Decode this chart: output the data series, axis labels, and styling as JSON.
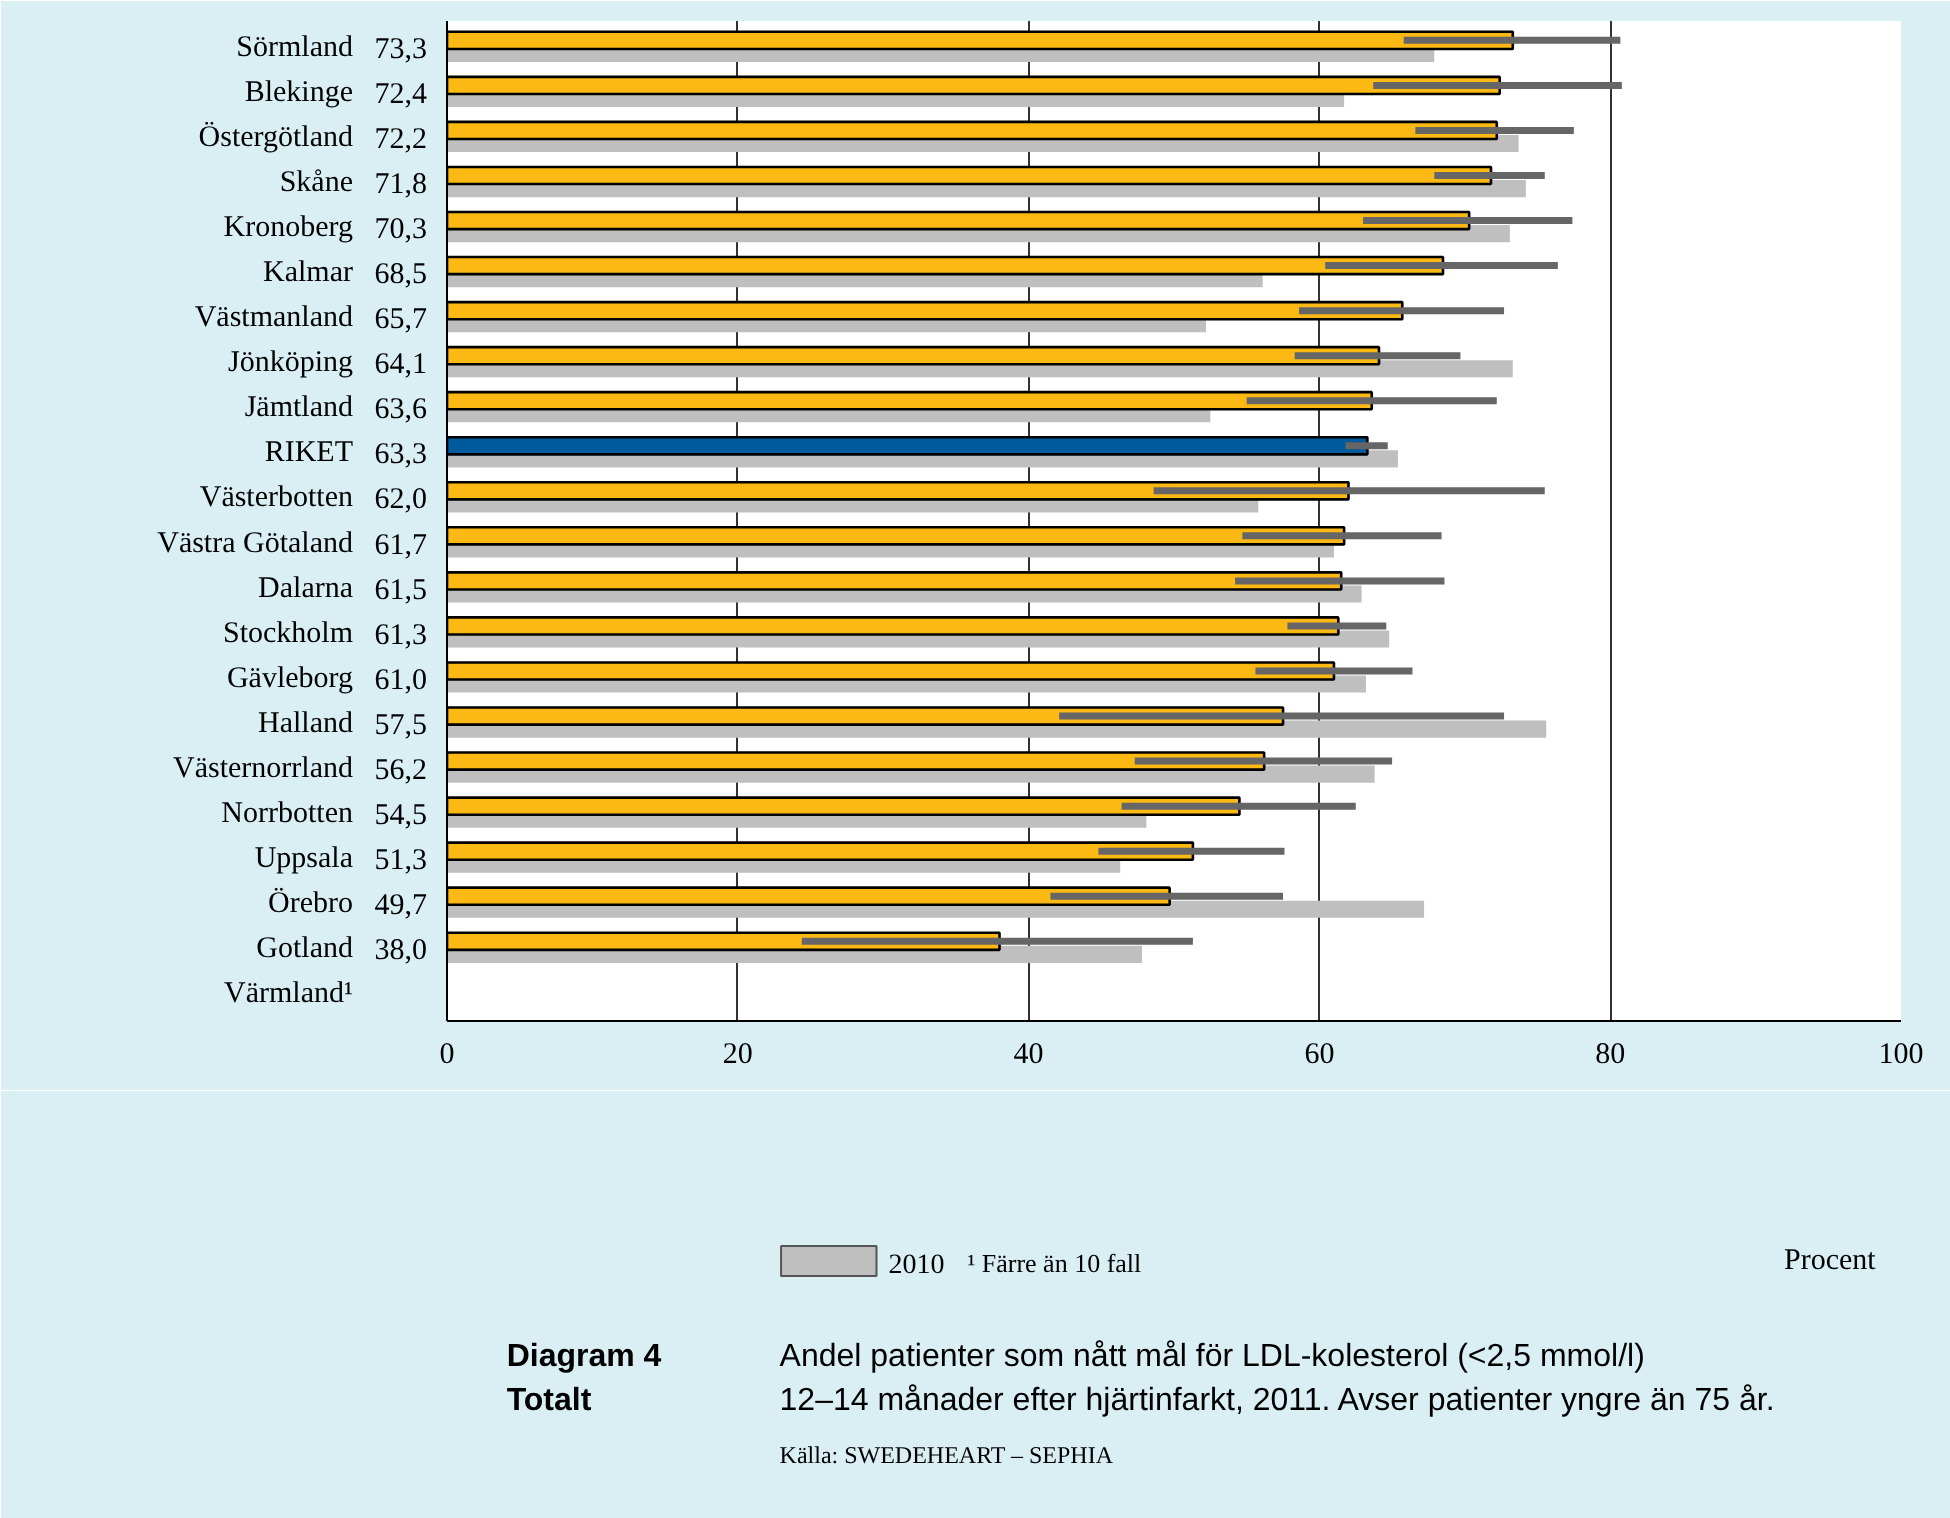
{
  "chart_data": {
    "type": "bar",
    "orientation": "horizontal",
    "title": "Andel patienter som nått mål för LDL-kolesterol (<2,5 mmol/l)\n12–14 månader efter hjärtinfarkt, 2011. Avser patienter yngre än 75 år.",
    "subtitle": "Diagram 4\nTotalt",
    "categories": [
      "Sörmland",
      "Blekinge",
      "Östergötland",
      "Skåne",
      "Kronoberg",
      "Kalmar",
      "Västmanland",
      "Jönköping",
      "Jämtland",
      "RIKET",
      "Västerbotten",
      "Västra Götaland",
      "Dalarna",
      "Stockholm",
      "Gävleborg",
      "Halland",
      "Västernorrland",
      "Norrbotten",
      "Uppsala",
      "Örebro",
      "Gotland",
      "Värmland¹"
    ],
    "series": [
      {
        "color": "#fdb913",
        "colors": [
          null,
          null,
          null,
          null,
          null,
          null,
          null,
          null,
          null,
          "#005a9c",
          null,
          null,
          null,
          null,
          null,
          null,
          null,
          null,
          null,
          null,
          null,
          null
        ],
        "values": [
          73.3,
          72.4,
          72.2,
          71.8,
          70.3,
          68.5,
          65.7,
          64.1,
          63.6,
          63.3,
          62.0,
          61.7,
          61.5,
          61.3,
          61.0,
          57.5,
          56.2,
          54.5,
          51.3,
          49.7,
          38.0,
          null
        ],
        "value_labels": [
          "73,3",
          "72,4",
          "72,2",
          "71,8",
          "70,3",
          "68,5",
          "65,7",
          "64,1",
          "63,6",
          "63,3",
          "62,0",
          "61,7",
          "61,5",
          "61,3",
          "61,0",
          "57,5",
          "56,2",
          "54,5",
          "51,3",
          "49,7",
          "38,0",
          null
        ],
        "errors": [
          [
            65.8,
            80.7
          ],
          [
            63.7,
            80.8
          ],
          [
            66.6,
            77.5
          ],
          [
            67.9,
            75.5
          ],
          [
            63.0,
            77.4
          ],
          [
            60.4,
            76.4
          ],
          [
            58.6,
            72.7
          ],
          [
            58.3,
            69.7
          ],
          [
            55.0,
            72.2
          ],
          [
            61.8,
            64.7
          ],
          [
            48.6,
            75.5
          ],
          [
            54.7,
            68.4
          ],
          [
            54.2,
            68.6
          ],
          [
            57.8,
            64.6
          ],
          [
            55.6,
            66.4
          ],
          [
            42.1,
            72.7
          ],
          [
            47.3,
            65.0
          ],
          [
            46.4,
            62.5
          ],
          [
            44.8,
            57.6
          ],
          [
            41.5,
            57.5
          ],
          [
            24.4,
            51.3
          ],
          null
        ]
      },
      {
        "name": "2010",
        "color": "#bfbfbf",
        "values": [
          67.9,
          61.7,
          73.7,
          74.2,
          73.1,
          56.1,
          52.2,
          73.3,
          52.5,
          65.4,
          55.8,
          61.0,
          62.9,
          64.8,
          63.2,
          75.6,
          63.8,
          48.1,
          46.3,
          67.2,
          47.8,
          null
        ]
      }
    ],
    "xlim": [
      0,
      100
    ],
    "xticks": [
      0,
      20,
      40,
      60,
      80,
      100
    ],
    "grid": "x",
    "legend": "bottom left",
    "annotations": [
      "¹ Färre än 10 fall",
      "Procent",
      "Källa: SWEDEHEART – SEPHIA"
    ]
  }
}
